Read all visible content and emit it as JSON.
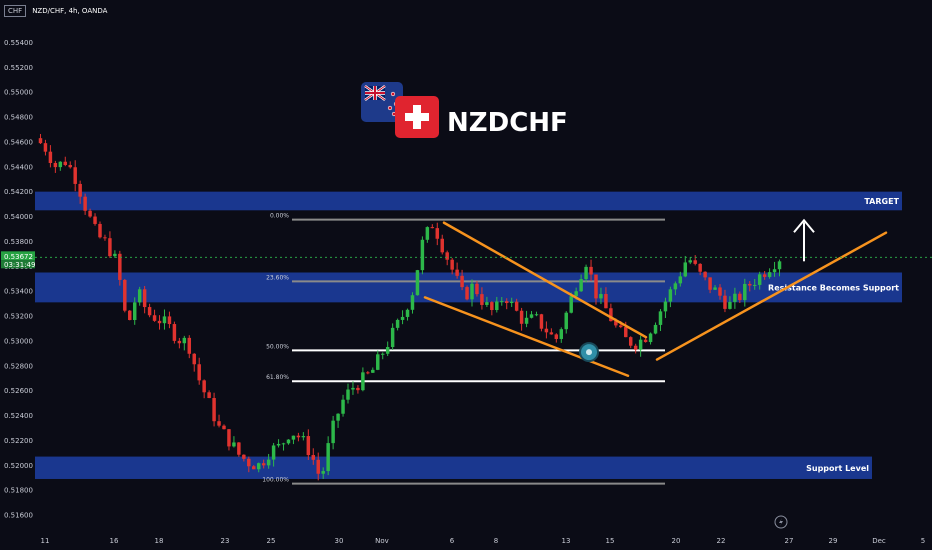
{
  "header": {
    "currency": "CHF",
    "symbol_line": "NZD/CHF, 4h, OANDA"
  },
  "title": "NZDCHF",
  "icons": [
    "new-zealand-flag-icon",
    "swiss-flag-icon",
    "lightning-icon"
  ],
  "colors": {
    "background": "#0b0c16",
    "bull": "#2db84a",
    "bear": "#e0332f",
    "zone": "#1d3fa5",
    "trendline": "#f7931e",
    "fib_white": "#ffffff",
    "fib_gray": "#8a8a8a",
    "price_label": "#26a242"
  },
  "chart_data": {
    "type": "candlestick",
    "y_axis": {
      "ticks": [
        "0.55400",
        "0.55200",
        "0.55000",
        "0.54800",
        "0.54600",
        "0.54400",
        "0.54200",
        "0.54000",
        "0.53800",
        "0.53600",
        "0.53400",
        "0.53200",
        "0.53000",
        "0.52800",
        "0.52600",
        "0.52400",
        "0.52200",
        "0.52000",
        "0.51800",
        "0.51600"
      ],
      "range": [
        0.5152,
        0.5558
      ]
    },
    "x_axis": {
      "ticks": [
        "11",
        "16",
        "18",
        "23",
        "25",
        "30",
        "Nov",
        "6",
        "8",
        "13",
        "15",
        "20",
        "22",
        "27",
        "29",
        "Dec",
        "5"
      ]
    },
    "current_price": "0.53672",
    "countdown": "03:31:49",
    "zones": [
      {
        "label": "TARGET",
        "low": 0.5405,
        "high": 0.542
      },
      {
        "label": "Resistance Becomes Support",
        "low": 0.5331,
        "high": 0.5355
      },
      {
        "label": "Support Level",
        "low": 0.5189,
        "high": 0.5207
      }
    ],
    "fib_levels": [
      {
        "label": "0.00%",
        "price": 0.53975
      },
      {
        "label": "23.60%",
        "price": 0.53479
      },
      {
        "label": "50.00%",
        "price": 0.52924
      },
      {
        "label": "61.80%",
        "price": 0.52676
      },
      {
        "label": "100.00%",
        "price": 0.51853
      }
    ],
    "trendlines": [
      {
        "name": "falling-wedge-upper",
        "from": [
          "Nov 5",
          0.5395
        ],
        "to": [
          "Nov 18",
          0.5303
        ]
      },
      {
        "name": "falling-wedge-lower",
        "from": [
          "Nov 3",
          0.5335
        ],
        "to": [
          "Nov 16",
          0.5272
        ]
      },
      {
        "name": "rising-trendline",
        "from": [
          "Nov 19",
          0.5285
        ],
        "to": [
          "Nov 30",
          0.5387
        ]
      }
    ],
    "arrow": {
      "from_price": 0.5364,
      "to_price": 0.5397
    },
    "price_path": [
      [
        0,
        0.5463
      ],
      [
        1,
        0.5455
      ],
      [
        2,
        0.544
      ],
      [
        3,
        0.5445
      ],
      [
        4,
        0.543
      ],
      [
        5,
        0.5405
      ],
      [
        6,
        0.5385
      ],
      [
        7,
        0.5378
      ],
      [
        8,
        0.5362
      ],
      [
        9,
        0.531
      ],
      [
        10,
        0.534
      ],
      [
        11,
        0.5322
      ],
      [
        12,
        0.5318
      ],
      [
        13,
        0.5312
      ],
      [
        14,
        0.5302
      ],
      [
        15,
        0.5298
      ],
      [
        16,
        0.527
      ],
      [
        17,
        0.525
      ],
      [
        18,
        0.523
      ],
      [
        19,
        0.522
      ],
      [
        20,
        0.5208
      ],
      [
        21,
        0.5202
      ],
      [
        22,
        0.52
      ],
      [
        23,
        0.5212
      ],
      [
        24,
        0.5215
      ],
      [
        25,
        0.5228
      ],
      [
        26,
        0.5222
      ],
      [
        27,
        0.521
      ],
      [
        28,
        0.5188
      ],
      [
        29,
        0.5225
      ],
      [
        30,
        0.525
      ],
      [
        31,
        0.5262
      ],
      [
        32,
        0.5268
      ],
      [
        33,
        0.5275
      ],
      [
        34,
        0.529
      ],
      [
        35,
        0.5305
      ],
      [
        36,
        0.532
      ],
      [
        37,
        0.534
      ],
      [
        38,
        0.538
      ],
      [
        39,
        0.5395
      ],
      [
        40,
        0.5375
      ],
      [
        41,
        0.5355
      ],
      [
        42,
        0.5335
      ],
      [
        43,
        0.5345
      ],
      [
        44,
        0.533
      ],
      [
        45,
        0.5322
      ],
      [
        46,
        0.5338
      ],
      [
        47,
        0.5325
      ],
      [
        48,
        0.5315
      ],
      [
        49,
        0.5318
      ],
      [
        50,
        0.531
      ],
      [
        51,
        0.53
      ],
      [
        52,
        0.532
      ],
      [
        53,
        0.5345
      ],
      [
        54,
        0.5365
      ],
      [
        55,
        0.5338
      ],
      [
        56,
        0.5325
      ],
      [
        57,
        0.531
      ],
      [
        58,
        0.53
      ],
      [
        59,
        0.5298
      ],
      [
        60,
        0.5305
      ],
      [
        61,
        0.532
      ],
      [
        62,
        0.5335
      ],
      [
        63,
        0.535
      ],
      [
        64,
        0.5368
      ],
      [
        65,
        0.5355
      ],
      [
        66,
        0.5345
      ],
      [
        67,
        0.5338
      ],
      [
        68,
        0.5328
      ],
      [
        69,
        0.5335
      ],
      [
        70,
        0.5345
      ],
      [
        71,
        0.5352
      ],
      [
        72,
        0.536
      ],
      [
        73,
        0.5367
      ]
    ]
  }
}
